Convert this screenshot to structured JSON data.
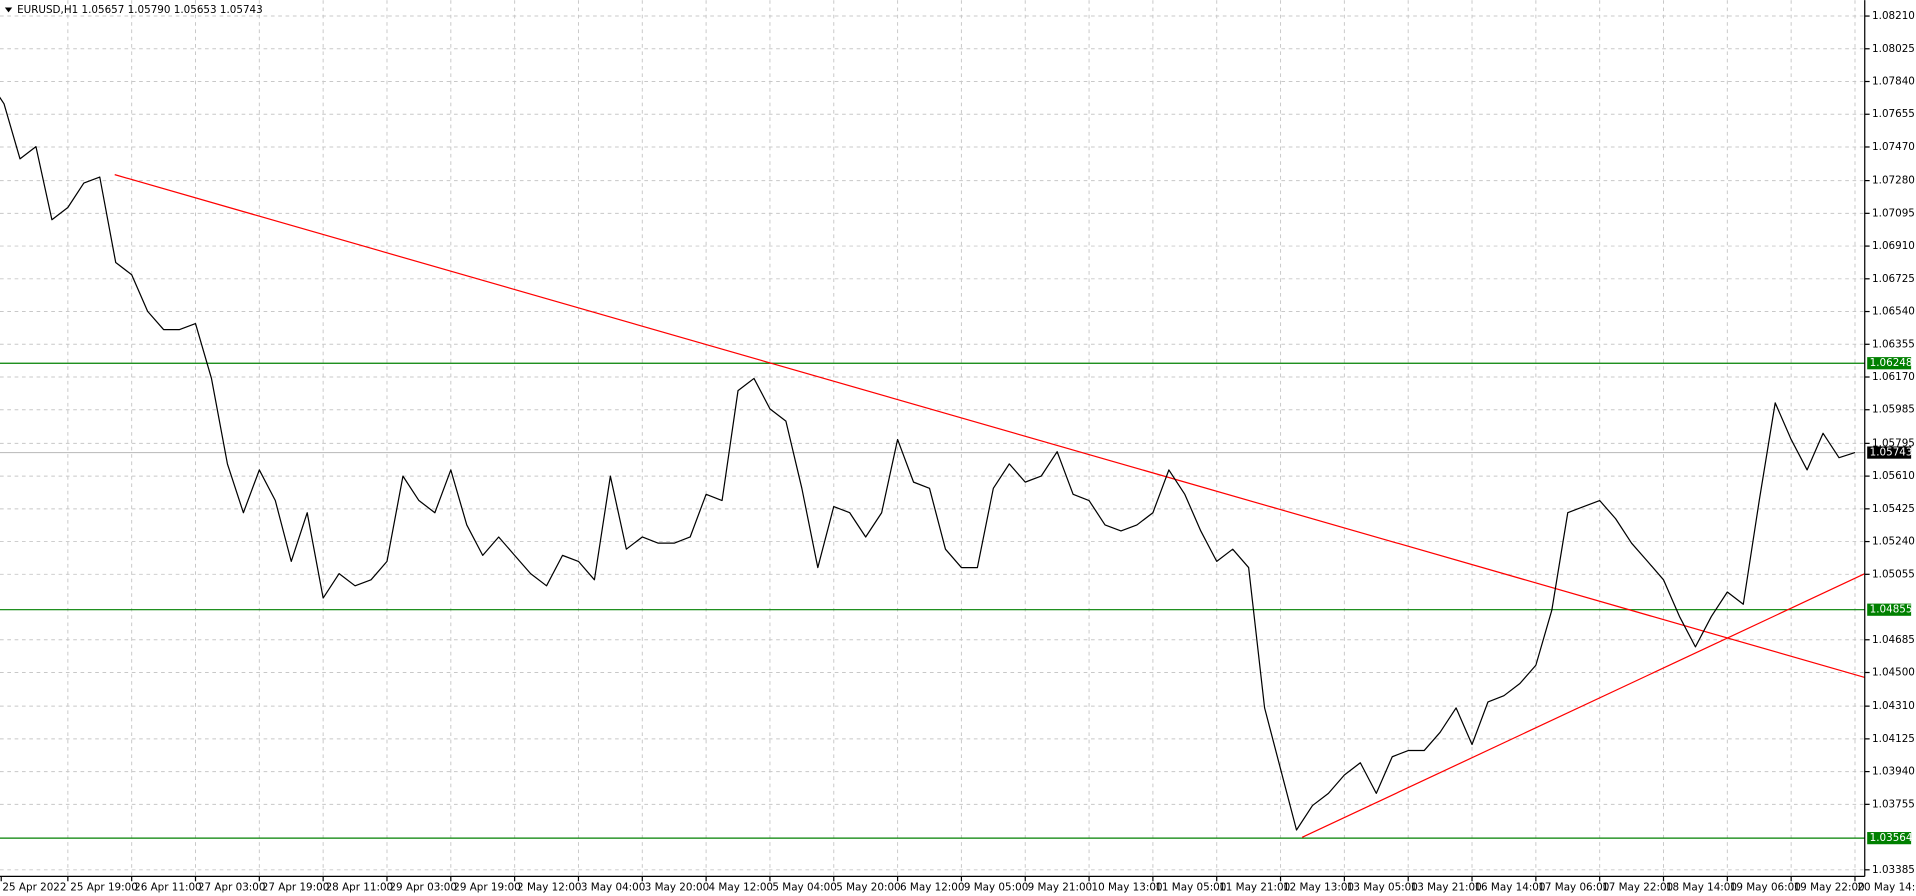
{
  "chart_data": {
    "type": "line",
    "title": "EURUSD,H1  1.05657 1.05790 1.05653 1.05743",
    "x": [
      "25 Apr 2022",
      null,
      null,
      null,
      null,
      "25 Apr 19:00",
      null,
      null,
      null,
      "26 Apr 11:00",
      null,
      null,
      null,
      "27 Apr 03:00",
      null,
      null,
      null,
      "27 Apr 19:00",
      null,
      null,
      null,
      "28 Apr 11:00",
      null,
      null,
      null,
      "29 Apr 03:00",
      null,
      null,
      null,
      "29 Apr 19:00",
      null,
      null,
      null,
      "2 May 12:00",
      null,
      null,
      null,
      "3 May 04:00",
      null,
      null,
      null,
      "3 May 20:00",
      null,
      null,
      null,
      "4 May 12:00",
      null,
      null,
      null,
      "5 May 04:00",
      null,
      null,
      null,
      "5 May 20:00",
      null,
      null,
      null,
      "6 May 12:00",
      null,
      null,
      null,
      "9 May 05:00",
      null,
      null,
      null,
      "9 May 21:00",
      null,
      null,
      null,
      "10 May 13:00",
      null,
      null,
      null,
      "11 May 05:00",
      null,
      null,
      null,
      "11 May 21:00",
      null,
      null,
      null,
      "12 May 13:00",
      null,
      null,
      null,
      "13 May 05:00",
      null,
      null,
      null,
      "13 May 21:00",
      null,
      null,
      null,
      "16 May 14:00",
      null,
      null,
      null,
      "17 May 06:00",
      null,
      null,
      null,
      "17 May 22:00",
      null,
      null,
      null,
      "18 May 14:00",
      null,
      null,
      null,
      "19 May 06:00",
      null,
      null,
      null,
      "19 May 22:00",
      null,
      null,
      null,
      "20 May 14:00"
    ],
    "series": [
      {
        "name": "EURUSD,H1",
        "color": "#000000",
        "values": [
          1.0785,
          1.07714,
          1.07403,
          1.07472,
          1.07059,
          1.07128,
          1.07266,
          1.073,
          1.06817,
          1.06748,
          1.06541,
          1.06438,
          1.06438,
          1.06472,
          1.06162,
          1.05679,
          1.05403,
          1.05645,
          1.05472,
          1.05128,
          1.05403,
          1.04921,
          1.05059,
          1.0499,
          1.05024,
          1.05128,
          1.0561,
          1.05472,
          1.05403,
          1.05645,
          1.05334,
          1.05162,
          1.05266,
          1.05162,
          1.05059,
          1.0499,
          1.05162,
          1.05128,
          1.05024,
          1.0561,
          1.05197,
          1.05266,
          1.05231,
          1.05231,
          1.05266,
          1.05507,
          1.05472,
          1.06093,
          1.06162,
          1.0599,
          1.05921,
          1.05541,
          1.05093,
          1.05438,
          1.05403,
          1.05266,
          1.05403,
          1.05817,
          1.05576,
          1.05541,
          1.05197,
          1.05093,
          1.05093,
          1.05541,
          1.05679,
          1.05576,
          1.0561,
          1.05748,
          1.05507,
          1.05472,
          1.05334,
          1.053,
          1.05334,
          1.05403,
          1.05645,
          1.05507,
          1.053,
          1.05128,
          1.05197,
          1.05093,
          1.043,
          1.03955,
          1.0361,
          1.03748,
          1.03817,
          1.03921,
          1.0399,
          1.03817,
          1.04024,
          1.04059,
          1.04059,
          1.04162,
          1.043,
          1.04093,
          1.04334,
          1.04369,
          1.04438,
          1.04541,
          1.04852,
          1.05403,
          1.05438,
          1.05472,
          1.05369,
          1.05231,
          1.05128,
          1.05024,
          1.04817,
          1.04645,
          1.04817,
          1.04955,
          1.04886,
          1.05472,
          1.06024,
          1.05817,
          1.05645,
          1.05852,
          1.05714,
          1.05743
        ]
      }
    ],
    "ylim": [
      1.03348,
      1.083
    ],
    "yticks": [
      {
        "value": 1.0821,
        "label": "1.08210"
      },
      1.08025,
      {
        "value": 1.0784,
        "label": "1.07840"
      },
      1.07655,
      {
        "value": 1.0747,
        "label": "1.07470"
      },
      {
        "value": 1.0728,
        "label": "1.07280"
      },
      1.07095,
      {
        "value": 1.0691,
        "label": "1.06910"
      },
      1.06725,
      {
        "value": 1.0654,
        "label": "1.06540"
      },
      1.06355,
      {
        "value": 1.0617,
        "label": "1.06170"
      },
      1.05985,
      1.05795,
      {
        "value": 1.0561,
        "label": "1.05610"
      },
      1.05425,
      {
        "value": 1.0524,
        "label": "1.05240"
      },
      1.05055,
      1.04685,
      {
        "value": 1.045,
        "label": "1.04500"
      },
      {
        "value": 1.0431,
        "label": "1.04310"
      },
      1.04125,
      {
        "value": 1.0394,
        "label": "1.03940"
      },
      1.03755,
      1.03385
    ],
    "grid": true,
    "levels": [
      {
        "value": 1.06248,
        "color": "#008000"
      },
      {
        "value": 1.04855,
        "color": "#008000"
      },
      {
        "value": 1.03564,
        "color": "#008000"
      }
    ],
    "last_price": {
      "value": 1.05743,
      "color": "#000000"
    }
  }
}
